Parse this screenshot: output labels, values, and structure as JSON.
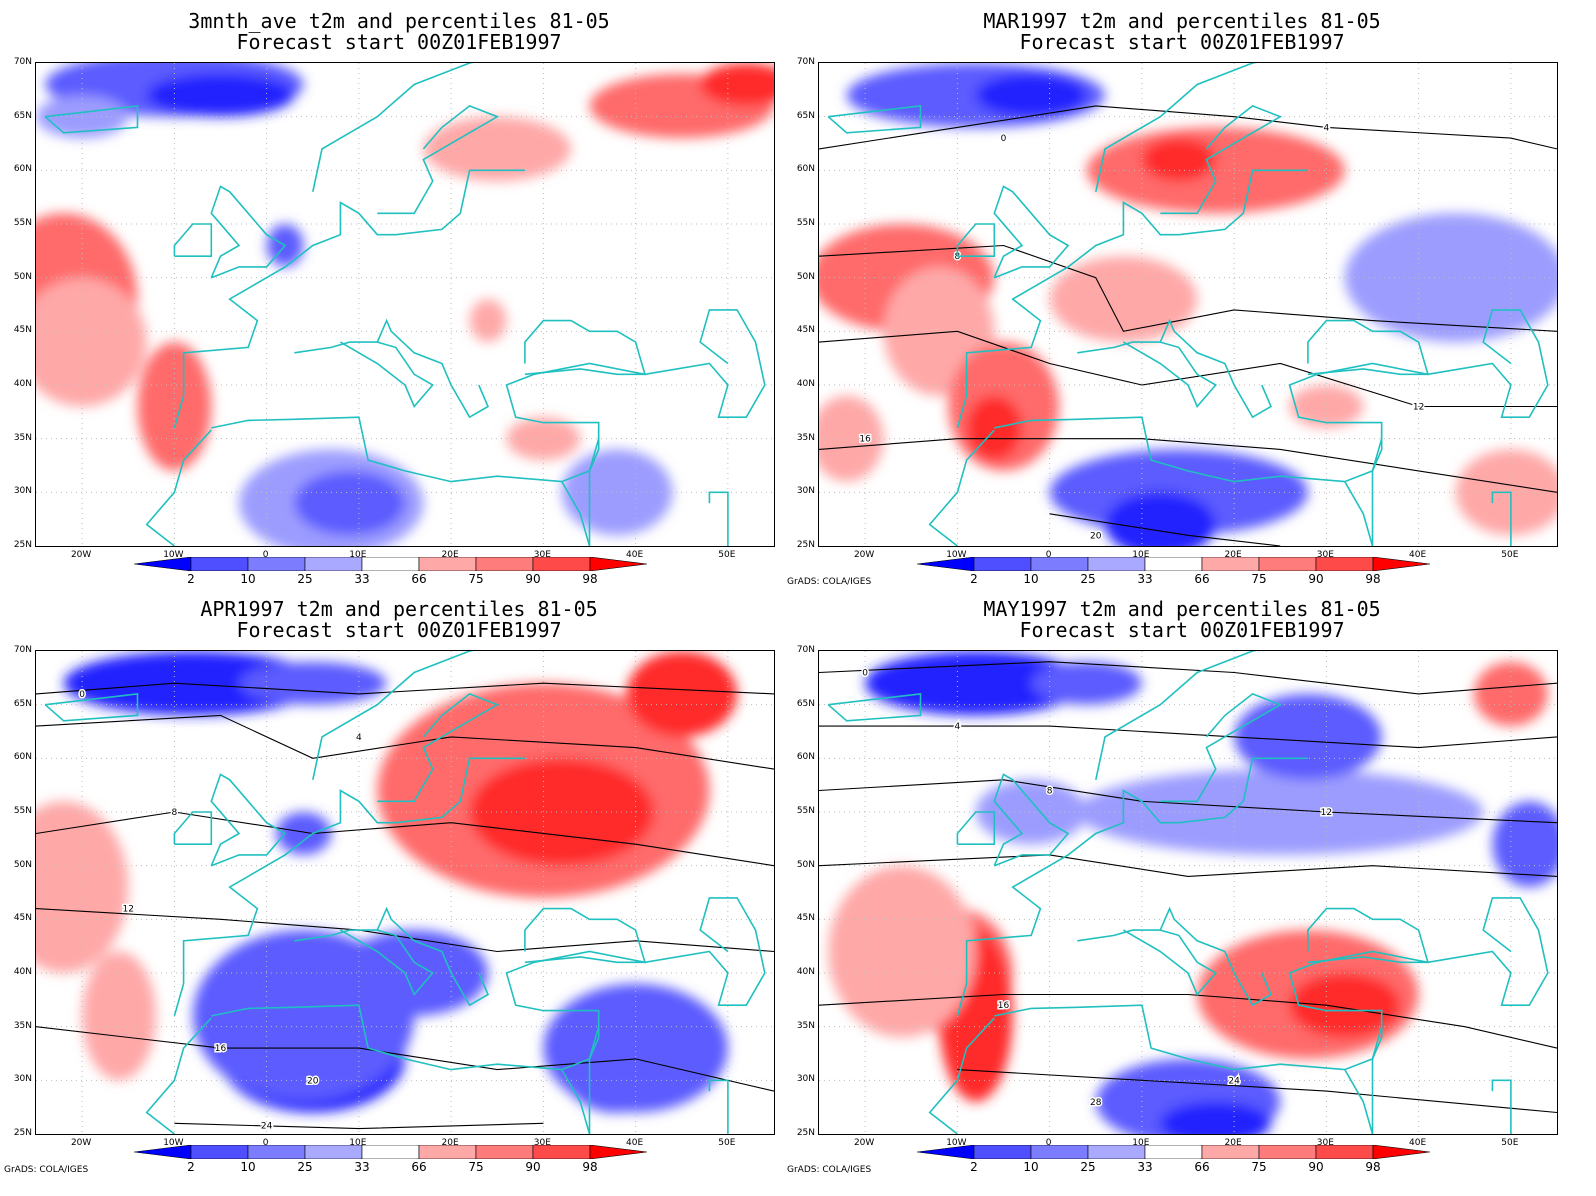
{
  "panels": [
    {
      "title1": "3mnth_ave t2m and percentiles 81-05",
      "title2": "Forecast start 00Z01FEB1997",
      "credit": ""
    },
    {
      "title1": "MAR1997 t2m and percentiles 81-05",
      "title2": "Forecast start 00Z01FEB1997",
      "credit": "GrADS: COLA/IGES"
    },
    {
      "title1": "APR1997 t2m and percentiles 81-05",
      "title2": "Forecast start 00Z01FEB1997",
      "credit": "GrADS: COLA/IGES"
    },
    {
      "title1": "MAY1997 t2m and percentiles 81-05",
      "title2": "Forecast start 00Z01FEB1997",
      "credit": "GrADS: COLA/IGES"
    }
  ],
  "lat_labels": [
    "70N",
    "65N",
    "60N",
    "55N",
    "50N",
    "45N",
    "40N",
    "35N",
    "30N",
    "25N"
  ],
  "lon_labels": [
    "20W",
    "10W",
    "0",
    "10E",
    "20E",
    "30E",
    "40E",
    "50E"
  ],
  "colorbar": {
    "labels": [
      "2",
      "10",
      "25",
      "33",
      "66",
      "75",
      "90",
      "98"
    ],
    "colors": [
      "#0000ff",
      "#4f4fff",
      "#7c7cff",
      "#a9a9ff",
      "#ffffff",
      "#ffa8a8",
      "#ff7c7c",
      "#ff4a4a",
      "#ff0000"
    ]
  },
  "palette": {
    "cold_strong": "#2323ff",
    "cold_mid": "#5c5cff",
    "cold_light": "#9c9cff",
    "warm_light": "#ffa8a8",
    "warm_mid": "#ff6b6b",
    "warm_strong": "#ff2a2a",
    "coast": "#20c0c0",
    "contour": "#000000",
    "grid": "#bdbdbd"
  }
}
